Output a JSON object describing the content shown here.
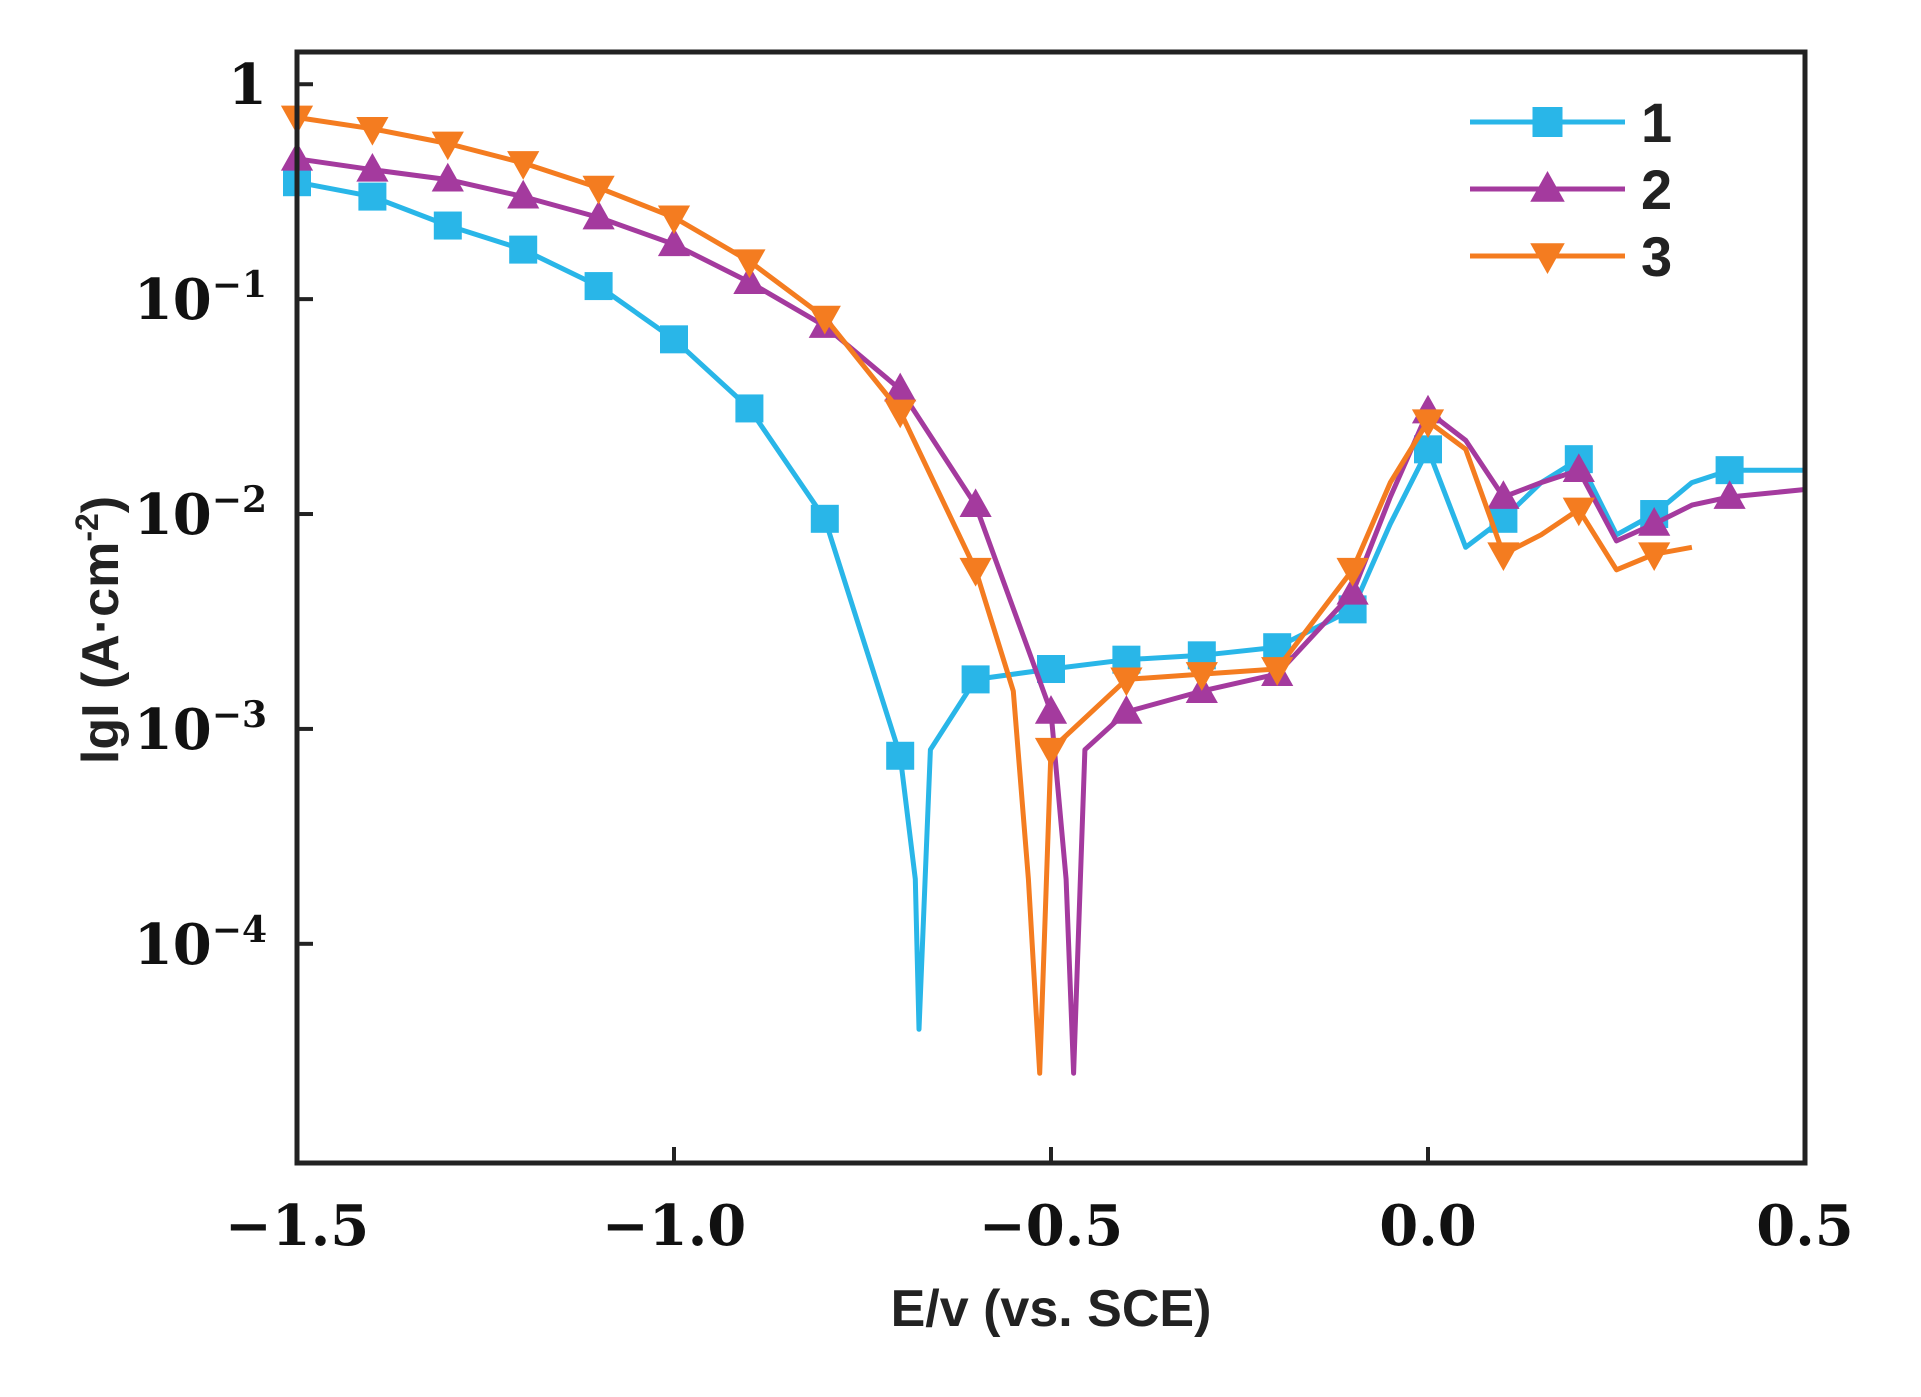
{
  "chart_data": {
    "type": "line",
    "title": "",
    "xlabel": "E/v  (vs. SCE)",
    "ylabel": "lgI (A·cm",
    "ylabel_sup": "-2",
    "ylabel_close": ")",
    "xlim": [
      -1.5,
      0.5
    ],
    "ylim_log10": [
      -5.02,
      0.15
    ],
    "y_scale": "log",
    "grid": false,
    "legend_position": "top-right",
    "x_ticks": [
      {
        "value": -1.5,
        "label": "−1.5"
      },
      {
        "value": -1.0,
        "label": "−1.0"
      },
      {
        "value": -0.5,
        "label": "−0.5"
      },
      {
        "value": 0.0,
        "label": "0.0"
      },
      {
        "value": 0.5,
        "label": "0.5"
      }
    ],
    "y_ticks": [
      {
        "value": 1,
        "base": "1",
        "exp": ""
      },
      {
        "value": 0.1,
        "base": "10",
        "exp": "−1"
      },
      {
        "value": 0.01,
        "base": "10",
        "exp": "−2"
      },
      {
        "value": 0.001,
        "base": "10",
        "exp": "−3"
      },
      {
        "value": 0.0001,
        "base": "10",
        "exp": "−4"
      }
    ],
    "series": [
      {
        "name": "1",
        "color": "#29b6e8",
        "marker": "square",
        "x": [
          -1.5,
          -1.4,
          -1.3,
          -1.2,
          -1.1,
          -1.0,
          -0.9,
          -0.8,
          -0.7,
          -0.68,
          -0.675,
          -0.66,
          -0.6,
          -0.5,
          -0.4,
          -0.3,
          -0.2,
          -0.1,
          -0.05,
          0.0,
          0.05,
          0.1,
          0.15,
          0.2,
          0.25,
          0.3,
          0.35,
          0.4,
          0.5
        ],
        "y": [
          0.35,
          0.3,
          0.22,
          0.17,
          0.115,
          0.065,
          0.031,
          0.0095,
          0.00075,
          0.0002,
          4e-05,
          0.0008,
          0.0017,
          0.0019,
          0.0021,
          0.0022,
          0.0024,
          0.0036,
          0.009,
          0.02,
          0.007,
          0.0095,
          0.014,
          0.018,
          0.008,
          0.01,
          0.014,
          0.016,
          0.016
        ],
        "marker_x": [
          -1.5,
          -1.4,
          -1.3,
          -1.2,
          -1.1,
          -1.0,
          -0.9,
          -0.8,
          -0.7,
          -0.6,
          -0.5,
          -0.4,
          -0.3,
          -0.2,
          -0.1,
          0.0,
          0.1,
          0.2,
          0.3,
          0.4
        ]
      },
      {
        "name": "2",
        "color": "#a43a9e",
        "marker": "triangle-up",
        "x": [
          -1.5,
          -1.4,
          -1.3,
          -1.2,
          -1.1,
          -1.0,
          -0.9,
          -0.8,
          -0.7,
          -0.6,
          -0.5,
          -0.48,
          -0.47,
          -0.455,
          -0.4,
          -0.3,
          -0.2,
          -0.1,
          -0.05,
          0.0,
          0.05,
          0.1,
          0.15,
          0.2,
          0.25,
          0.3,
          0.35,
          0.4,
          0.5
        ],
        "y": [
          0.45,
          0.4,
          0.36,
          0.3,
          0.24,
          0.18,
          0.12,
          0.075,
          0.038,
          0.011,
          0.0012,
          0.0002,
          2.5e-05,
          0.0008,
          0.0012,
          0.0015,
          0.0018,
          0.0043,
          0.012,
          0.03,
          0.022,
          0.012,
          0.014,
          0.016,
          0.0075,
          0.009,
          0.011,
          0.012,
          0.013
        ],
        "marker_x": [
          -1.5,
          -1.4,
          -1.3,
          -1.2,
          -1.1,
          -1.0,
          -0.9,
          -0.8,
          -0.7,
          -0.6,
          -0.5,
          -0.4,
          -0.3,
          -0.2,
          -0.1,
          0.0,
          0.1,
          0.2,
          0.3,
          0.4
        ]
      },
      {
        "name": "3",
        "color": "#f47c20",
        "marker": "triangle-down",
        "x": [
          -1.5,
          -1.4,
          -1.3,
          -1.2,
          -1.1,
          -1.0,
          -0.9,
          -0.8,
          -0.7,
          -0.6,
          -0.55,
          -0.53,
          -0.515,
          -0.5,
          -0.4,
          -0.3,
          -0.2,
          -0.1,
          -0.05,
          0.0,
          0.05,
          0.1,
          0.15,
          0.2,
          0.25,
          0.3,
          0.35
        ],
        "y": [
          0.7,
          0.62,
          0.53,
          0.43,
          0.33,
          0.24,
          0.15,
          0.082,
          0.03,
          0.0055,
          0.0015,
          0.0002,
          2.5e-05,
          0.0008,
          0.0017,
          0.0018,
          0.0019,
          0.0055,
          0.014,
          0.027,
          0.02,
          0.0065,
          0.008,
          0.0105,
          0.0055,
          0.0065,
          0.007
        ],
        "marker_x": [
          -1.5,
          -1.4,
          -1.3,
          -1.2,
          -1.1,
          -1.0,
          -0.9,
          -0.8,
          -0.7,
          -0.6,
          -0.5,
          -0.4,
          -0.3,
          -0.2,
          -0.1,
          0.0,
          0.1,
          0.2,
          0.3
        ]
      }
    ]
  }
}
